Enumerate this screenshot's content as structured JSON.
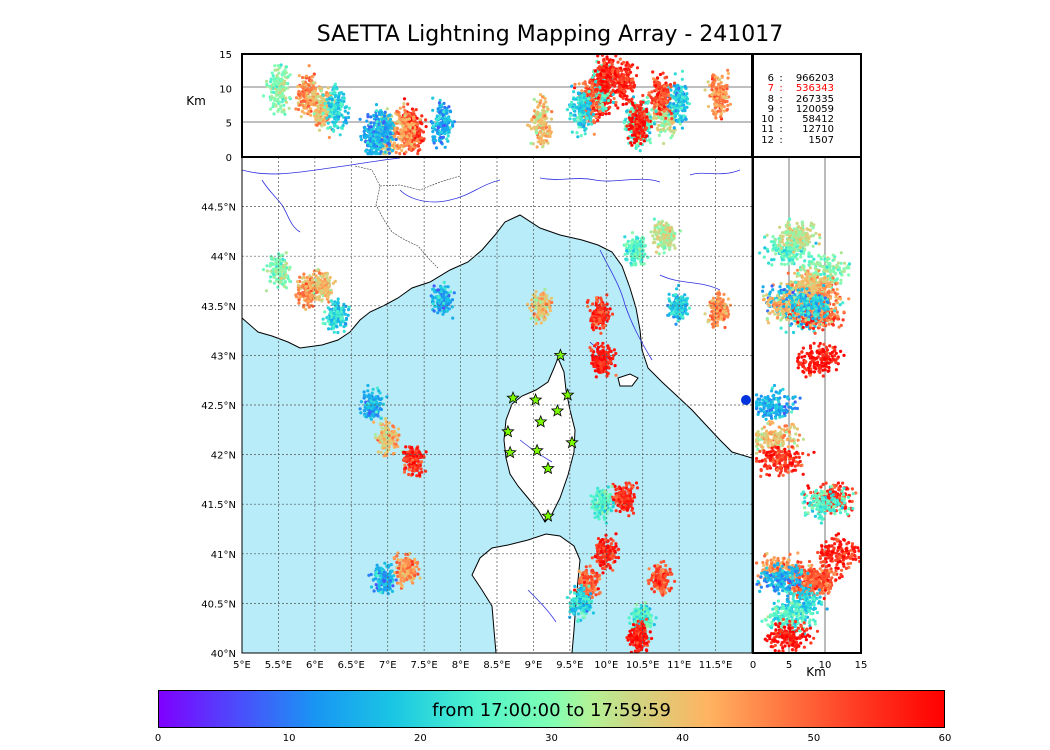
{
  "title": "SAETTA Lightning Mapping Array - 241017",
  "colors": {
    "sea": "#b9ecf9",
    "land": "#ffffff",
    "coast": "#000000",
    "river": "#3030e0",
    "grid": "#555555",
    "station": "#7cfc00"
  },
  "altitude_panel": {
    "ylabel": "Km",
    "yticks": [
      "0",
      "5",
      "10",
      "15"
    ]
  },
  "side_panel": {
    "xlabel": "Km",
    "xticks": [
      "0",
      "5",
      "10",
      "15"
    ]
  },
  "map": {
    "lon_ticks": [
      "5°E",
      "5.5°E",
      "6°E",
      "6.5°E",
      "7°E",
      "7.5°E",
      "8°E",
      "8.5°E",
      "9°E",
      "9.5°E",
      "10°E",
      "10.5°E",
      "11°E",
      "11.5°E"
    ],
    "lat_ticks": [
      "40°N",
      "40.5°N",
      "41°N",
      "41.5°N",
      "42°N",
      "42.5°N",
      "43°N",
      "43.5°N",
      "44°N",
      "44.5°N"
    ]
  },
  "legend": [
    {
      "k": "6",
      "c": ":",
      "v": "966203",
      "color": "#000000"
    },
    {
      "k": "7",
      "c": ":",
      "v": "536343",
      "color": "#ff0000"
    },
    {
      "k": "8",
      "c": ":",
      "v": "267335",
      "color": "#000000"
    },
    {
      "k": "9",
      "c": ":",
      "v": "120059",
      "color": "#000000"
    },
    {
      "k": "10",
      "c": ":",
      "v": "58412",
      "color": "#000000"
    },
    {
      "k": "11",
      "c": ":",
      "v": "12710",
      "color": "#000000"
    },
    {
      "k": "12",
      "c": ":",
      "v": "1507",
      "color": "#000000"
    }
  ],
  "colorbar": {
    "label": "from 17:00:00 to 17:59:59",
    "ticks": [
      "0",
      "10",
      "20",
      "30",
      "40",
      "50",
      "60"
    ]
  },
  "chart_data": {
    "type": "scatter",
    "title": "SAETTA Lightning Mapping Array - 241017",
    "x_range": [
      5,
      12
    ],
    "y_range": [
      40,
      45
    ],
    "altitude_range_km": [
      0,
      15
    ],
    "color_scale": {
      "label": "from 17:00:00 to 17:59:59",
      "range": [
        0,
        60
      ]
    },
    "clusters": [
      {
        "lon": 5.5,
        "lat": 43.85,
        "t": 30,
        "alt": 10
      },
      {
        "lon": 5.9,
        "lat": 43.65,
        "t": 45,
        "alt": 9
      },
      {
        "lon": 6.1,
        "lat": 43.7,
        "t": 40,
        "alt": 7
      },
      {
        "lon": 6.3,
        "lat": 43.4,
        "t": 20,
        "alt": 7
      },
      {
        "lon": 7.75,
        "lat": 43.55,
        "t": 15,
        "alt": 5
      },
      {
        "lon": 9.1,
        "lat": 43.5,
        "t": 40,
        "alt": 5
      },
      {
        "lon": 9.9,
        "lat": 43.4,
        "t": 55,
        "alt": 9
      },
      {
        "lon": 9.95,
        "lat": 42.95,
        "t": 58,
        "alt": 9
      },
      {
        "lon": 10.4,
        "lat": 44.05,
        "t": 25,
        "alt": 5
      },
      {
        "lon": 10.8,
        "lat": 44.2,
        "t": 35,
        "alt": 6
      },
      {
        "lon": 11.55,
        "lat": 43.45,
        "t": 45,
        "alt": 9
      },
      {
        "lon": 11.0,
        "lat": 43.5,
        "t": 18,
        "alt": 8
      },
      {
        "lon": 7.0,
        "lat": 42.15,
        "t": 40,
        "alt": 3
      },
      {
        "lon": 6.8,
        "lat": 42.5,
        "t": 15,
        "alt": 3
      },
      {
        "lon": 7.35,
        "lat": 41.95,
        "t": 55,
        "alt": 4
      },
      {
        "lon": 10.25,
        "lat": 41.55,
        "t": 55,
        "alt": 11
      },
      {
        "lon": 9.95,
        "lat": 41.5,
        "t": 25,
        "alt": 10
      },
      {
        "lon": 10.0,
        "lat": 41.0,
        "t": 55,
        "alt": 12
      },
      {
        "lon": 10.75,
        "lat": 40.75,
        "t": 52,
        "alt": 9
      },
      {
        "lon": 9.75,
        "lat": 40.7,
        "t": 50,
        "alt": 8
      },
      {
        "lon": 9.65,
        "lat": 40.5,
        "t": 20,
        "alt": 7
      },
      {
        "lon": 10.5,
        "lat": 40.35,
        "t": 25,
        "alt": 5
      },
      {
        "lon": 10.45,
        "lat": 40.15,
        "t": 58,
        "alt": 5
      },
      {
        "lon": 7.25,
        "lat": 40.85,
        "t": 45,
        "alt": 4
      },
      {
        "lon": 6.95,
        "lat": 40.75,
        "t": 15,
        "alt": 4
      }
    ],
    "stations": [
      {
        "lon": 9.37,
        "lat": 43.0
      },
      {
        "lon": 8.72,
        "lat": 42.57
      },
      {
        "lon": 9.03,
        "lat": 42.55
      },
      {
        "lon": 9.47,
        "lat": 42.6
      },
      {
        "lon": 9.33,
        "lat": 42.44
      },
      {
        "lon": 9.1,
        "lat": 42.33
      },
      {
        "lon": 8.65,
        "lat": 42.23
      },
      {
        "lon": 9.53,
        "lat": 42.12
      },
      {
        "lon": 8.68,
        "lat": 42.02
      },
      {
        "lon": 9.05,
        "lat": 42.04
      },
      {
        "lon": 9.2,
        "lat": 41.86
      },
      {
        "lon": 9.2,
        "lat": 41.38
      }
    ]
  }
}
